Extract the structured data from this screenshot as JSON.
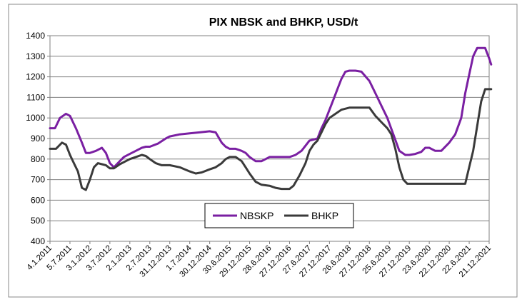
{
  "chart_data": {
    "type": "line",
    "title": "PIX NBSK and BHKP, USD/t",
    "xlabel": "",
    "ylabel": "",
    "ylim": [
      400,
      1400
    ],
    "yticks": [
      400,
      500,
      600,
      700,
      800,
      900,
      1000,
      1100,
      1200,
      1300,
      1400
    ],
    "grid": true,
    "legend_position": "bottom-center",
    "x_tick_labels": [
      "4.1.2011",
      "5.7.2011",
      "3.1.2012",
      "3.7.2012",
      "2.1.2013",
      "2.7.2013",
      "31.12.2013",
      "1.7.2014",
      "30.12.2014",
      "30.6.2015",
      "29.12.2015",
      "28.6.2016",
      "27.12.2016",
      "27.6.2017",
      "27.12.2017",
      "26.6.2018",
      "27.12.2018",
      "25.6.2019",
      "27.12.2019",
      "23.6.2020",
      "22.12.2020",
      "22.6.2021",
      "21.12.2021"
    ],
    "series": [
      {
        "name": "NBSKP",
        "color": "#7a1fa2",
        "x": [
          0,
          0.25,
          0.5,
          0.8,
          1.0,
          1.3,
          1.6,
          1.8,
          2.0,
          2.3,
          2.6,
          2.8,
          3.0,
          3.2,
          3.5,
          3.7,
          4.0,
          4.3,
          4.6,
          4.8,
          5.0,
          5.4,
          5.8,
          6.0,
          6.5,
          7.0,
          7.5,
          8.0,
          8.3,
          8.6,
          8.8,
          9.0,
          9.3,
          9.6,
          9.8,
          10.0,
          10.3,
          10.6,
          11.0,
          11.5,
          12.0,
          12.3,
          12.6,
          13.0,
          13.4,
          13.6,
          13.8,
          14.0,
          14.2,
          14.4,
          14.6,
          14.8,
          15.0,
          15.3,
          15.6,
          16.0,
          16.3,
          16.6,
          16.9,
          17.2,
          17.5,
          17.8,
          18.0,
          18.3,
          18.6,
          18.8,
          19.0,
          19.3,
          19.6,
          20.0,
          20.3,
          20.6,
          20.8,
          21.0,
          21.2,
          21.4,
          21.6,
          21.8,
          22.0,
          22.1
        ],
        "y": [
          950,
          950,
          1000,
          1020,
          1010,
          950,
          880,
          830,
          830,
          840,
          855,
          830,
          780,
          760,
          790,
          810,
          825,
          840,
          855,
          860,
          860,
          875,
          900,
          910,
          920,
          925,
          930,
          935,
          930,
          880,
          860,
          850,
          850,
          840,
          830,
          810,
          790,
          790,
          810,
          810,
          810,
          820,
          840,
          890,
          900,
          950,
          990,
          1040,
          1090,
          1140,
          1190,
          1225,
          1230,
          1230,
          1225,
          1180,
          1120,
          1060,
          1000,
          920,
          840,
          820,
          820,
          825,
          835,
          855,
          855,
          840,
          840,
          880,
          920,
          1000,
          1120,
          1210,
          1300,
          1340,
          1340,
          1340,
          1290,
          1260
        ]
      },
      {
        "name": "BHKP",
        "color": "#3a3a3a",
        "x": [
          0,
          0.3,
          0.6,
          0.8,
          1.0,
          1.2,
          1.4,
          1.6,
          1.8,
          2.0,
          2.2,
          2.4,
          2.6,
          2.8,
          3.0,
          3.2,
          3.5,
          3.8,
          4.0,
          4.3,
          4.6,
          4.8,
          5.0,
          5.3,
          5.6,
          5.8,
          6.0,
          6.5,
          7.0,
          7.3,
          7.6,
          8.0,
          8.3,
          8.6,
          8.8,
          9.0,
          9.3,
          9.6,
          9.8,
          10.0,
          10.3,
          10.6,
          11.0,
          11.3,
          11.6,
          12.0,
          12.2,
          12.5,
          12.8,
          13.0,
          13.2,
          13.4,
          13.6,
          13.8,
          14.0,
          14.3,
          14.6,
          15.0,
          15.3,
          15.6,
          16.0,
          16.3,
          16.6,
          16.9,
          17.1,
          17.3,
          17.5,
          17.7,
          17.9,
          18.2,
          18.6,
          19.0,
          19.5,
          20.0,
          20.3,
          20.6,
          20.8,
          21.0,
          21.2,
          21.4,
          21.6,
          21.8,
          22.0,
          22.1
        ],
        "y": [
          850,
          850,
          880,
          870,
          820,
          780,
          740,
          660,
          650,
          700,
          760,
          780,
          775,
          770,
          755,
          755,
          775,
          790,
          800,
          810,
          820,
          815,
          800,
          780,
          770,
          770,
          770,
          760,
          740,
          730,
          735,
          750,
          760,
          780,
          800,
          810,
          810,
          790,
          760,
          730,
          690,
          675,
          670,
          660,
          655,
          655,
          670,
          720,
          780,
          840,
          870,
          890,
          930,
          970,
          1000,
          1020,
          1040,
          1050,
          1050,
          1050,
          1050,
          1010,
          980,
          950,
          920,
          850,
          760,
          700,
          680,
          680,
          680,
          680,
          680,
          680,
          680,
          680,
          680,
          760,
          840,
          960,
          1080,
          1140,
          1140,
          1140
        ]
      }
    ]
  }
}
